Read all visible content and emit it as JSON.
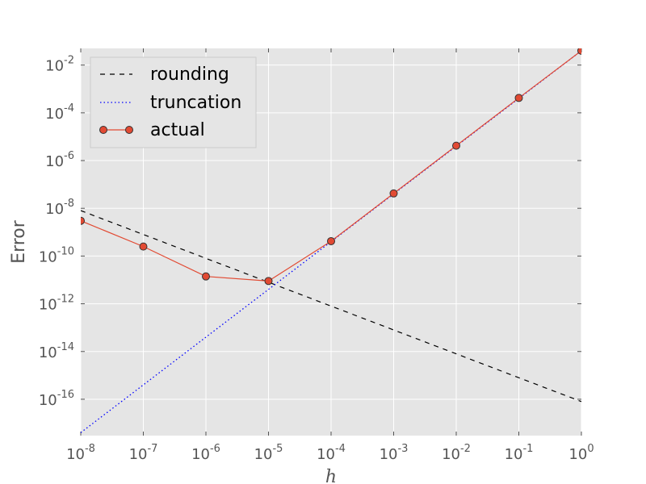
{
  "chart_data": {
    "type": "line",
    "title": "",
    "xlabel": "h",
    "ylabel": "Error",
    "xscale": "log",
    "yscale": "log",
    "xlim": [
      1e-08,
      1
    ],
    "ylim": [
      3e-18,
      0.05
    ],
    "x_ticks": [
      {
        "value": 1e-08,
        "base": "10",
        "exp": "-8"
      },
      {
        "value": 1e-07,
        "base": "10",
        "exp": "-7"
      },
      {
        "value": 1e-06,
        "base": "10",
        "exp": "-6"
      },
      {
        "value": 1e-05,
        "base": "10",
        "exp": "-5"
      },
      {
        "value": 0.0001,
        "base": "10",
        "exp": "-4"
      },
      {
        "value": 0.001,
        "base": "10",
        "exp": "-3"
      },
      {
        "value": 0.01,
        "base": "10",
        "exp": "-2"
      },
      {
        "value": 0.1,
        "base": "10",
        "exp": "-1"
      },
      {
        "value": 1,
        "base": "10",
        "exp": "0"
      }
    ],
    "y_ticks": [
      {
        "value": 1e-16,
        "base": "10",
        "exp": "-16"
      },
      {
        "value": 1e-14,
        "base": "10",
        "exp": "-14"
      },
      {
        "value": 1e-12,
        "base": "10",
        "exp": "-12"
      },
      {
        "value": 1e-10,
        "base": "10",
        "exp": "-10"
      },
      {
        "value": 1e-08,
        "base": "10",
        "exp": "-8"
      },
      {
        "value": 1e-06,
        "base": "10",
        "exp": "-6"
      },
      {
        "value": 0.0001,
        "base": "10",
        "exp": "-4"
      },
      {
        "value": 0.01,
        "base": "10",
        "exp": "-2"
      }
    ],
    "grid": true,
    "legend_position": "upper-left",
    "series": [
      {
        "name": "rounding",
        "style": "dashed",
        "color": "#000000",
        "x": [
          1e-08,
          1
        ],
        "y": [
          8e-09,
          8e-17
        ]
      },
      {
        "name": "truncation",
        "style": "dotted",
        "color": "#0000ff",
        "x": [
          1e-08,
          1
        ],
        "y": [
          4e-18,
          0.04
        ]
      },
      {
        "name": "actual",
        "style": "solid-markers",
        "color": "#e24a33",
        "marker_edge": "#333333",
        "x": [
          1e-08,
          1e-07,
          1e-06,
          1e-05,
          0.0001,
          0.001,
          0.01,
          0.1,
          1
        ],
        "y": [
          3e-09,
          2.5e-10,
          1.4e-11,
          9e-12,
          4.2e-10,
          4.2e-08,
          4.2e-06,
          0.00042,
          0.04
        ]
      }
    ]
  },
  "colors": {
    "plot_background": "#e5e5e5",
    "grid": "#ffffff",
    "legend_background": "#e5e5e5",
    "legend_border": "#cccccc"
  }
}
